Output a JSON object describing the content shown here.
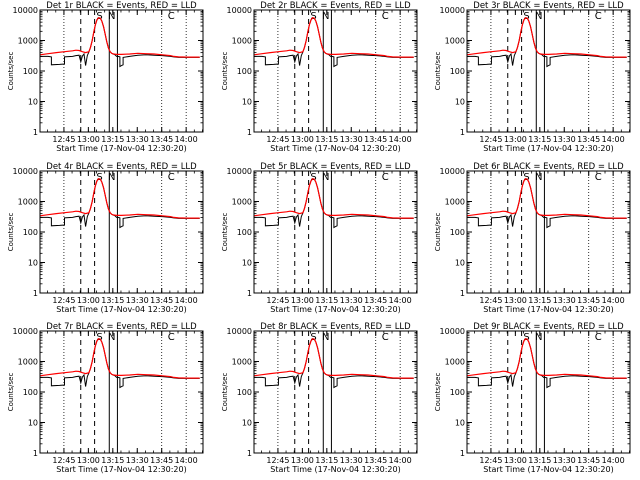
{
  "chart_data": {
    "type": "line",
    "grid": "dotted vertical lines at 12:45, 13:45, 14:00",
    "xlabel": "Start Time (17-Nov-04 12:30:20)",
    "ylabel": "Counts/sec",
    "x_ticks": [
      "12:45",
      "13:00",
      "13:15",
      "13:30",
      "13:45",
      "14:00"
    ],
    "x_tick_minutes": [
      14.67,
      29.67,
      44.67,
      59.67,
      74.67,
      89.67
    ],
    "xlim_minutes": [
      0,
      100
    ],
    "y_scale": "log",
    "ylim": [
      1,
      10000
    ],
    "y_ticks": [
      "1",
      "10",
      "100",
      "1000",
      "10000"
    ],
    "y_tick_values": [
      1,
      10,
      100,
      1000,
      10000
    ],
    "annotations": [
      "S",
      "N",
      "C"
    ],
    "annotation_minutes": [
      36.5,
      44.0,
      80.5
    ],
    "dashed_lines_minutes": [
      25.0,
      33.5
    ],
    "solid_lines_minutes": [
      42.5,
      47.5
    ],
    "series_colors": {
      "events": "#000000",
      "lld": "#ff0000"
    },
    "panels": [
      {
        "title": "Det 1r BLACK = Events, RED = LLD"
      },
      {
        "title": "Det 2r BLACK = Events, RED = LLD"
      },
      {
        "title": "Det 3r BLACK = Events, RED = LLD"
      },
      {
        "title": "Det 4r BLACK = Events, RED = LLD"
      },
      {
        "title": "Det 5r BLACK = Events, RED = LLD"
      },
      {
        "title": "Det 6r BLACK = Events, RED = LLD"
      },
      {
        "title": "Det 7r BLACK = Events, RED = LLD"
      },
      {
        "title": "Det 8r BLACK = Events, RED = LLD"
      },
      {
        "title": "Det 9r BLACK = Events, RED = LLD"
      }
    ],
    "lld_series": {
      "x": [
        0,
        5,
        10,
        15,
        20,
        22,
        24,
        26,
        28,
        30,
        31,
        32,
        33,
        34,
        35,
        36,
        37,
        38,
        39,
        40,
        41,
        42,
        43,
        44,
        45,
        47,
        50,
        55,
        60,
        65,
        70,
        75,
        80,
        82,
        85,
        90,
        95,
        98
      ],
      "y": [
        340,
        370,
        400,
        430,
        460,
        480,
        470,
        430,
        400,
        430,
        600,
        1000,
        1900,
        3300,
        4800,
        5600,
        5400,
        4300,
        2800,
        1600,
        900,
        560,
        430,
        380,
        360,
        350,
        350,
        360,
        380,
        370,
        360,
        340,
        320,
        300,
        290,
        285,
        285,
        285
      ]
    },
    "events_series": {
      "x": [
        0,
        5,
        7,
        7.01,
        12,
        15,
        15.01,
        20,
        22,
        24,
        25,
        26,
        27,
        28,
        29,
        30,
        31,
        32,
        33,
        34,
        35,
        36,
        37,
        38,
        39,
        40,
        41,
        42,
        43,
        44,
        45,
        46,
        47,
        48,
        49,
        49.01,
        50,
        51,
        51.01,
        55,
        60,
        65,
        70,
        75,
        80,
        82,
        85,
        90,
        95,
        98
      ],
      "y": [
        300,
        300,
        290,
        160,
        165,
        170,
        290,
        300,
        320,
        330,
        200,
        310,
        360,
        150,
        320,
        420,
        600,
        1000,
        1900,
        3300,
        4800,
        5600,
        5400,
        4300,
        2800,
        1600,
        900,
        560,
        430,
        380,
        360,
        340,
        300,
        300,
        290,
        140,
        150,
        160,
        280,
        300,
        330,
        340,
        330,
        320,
        300,
        290,
        280,
        280,
        280,
        280
      ]
    }
  }
}
